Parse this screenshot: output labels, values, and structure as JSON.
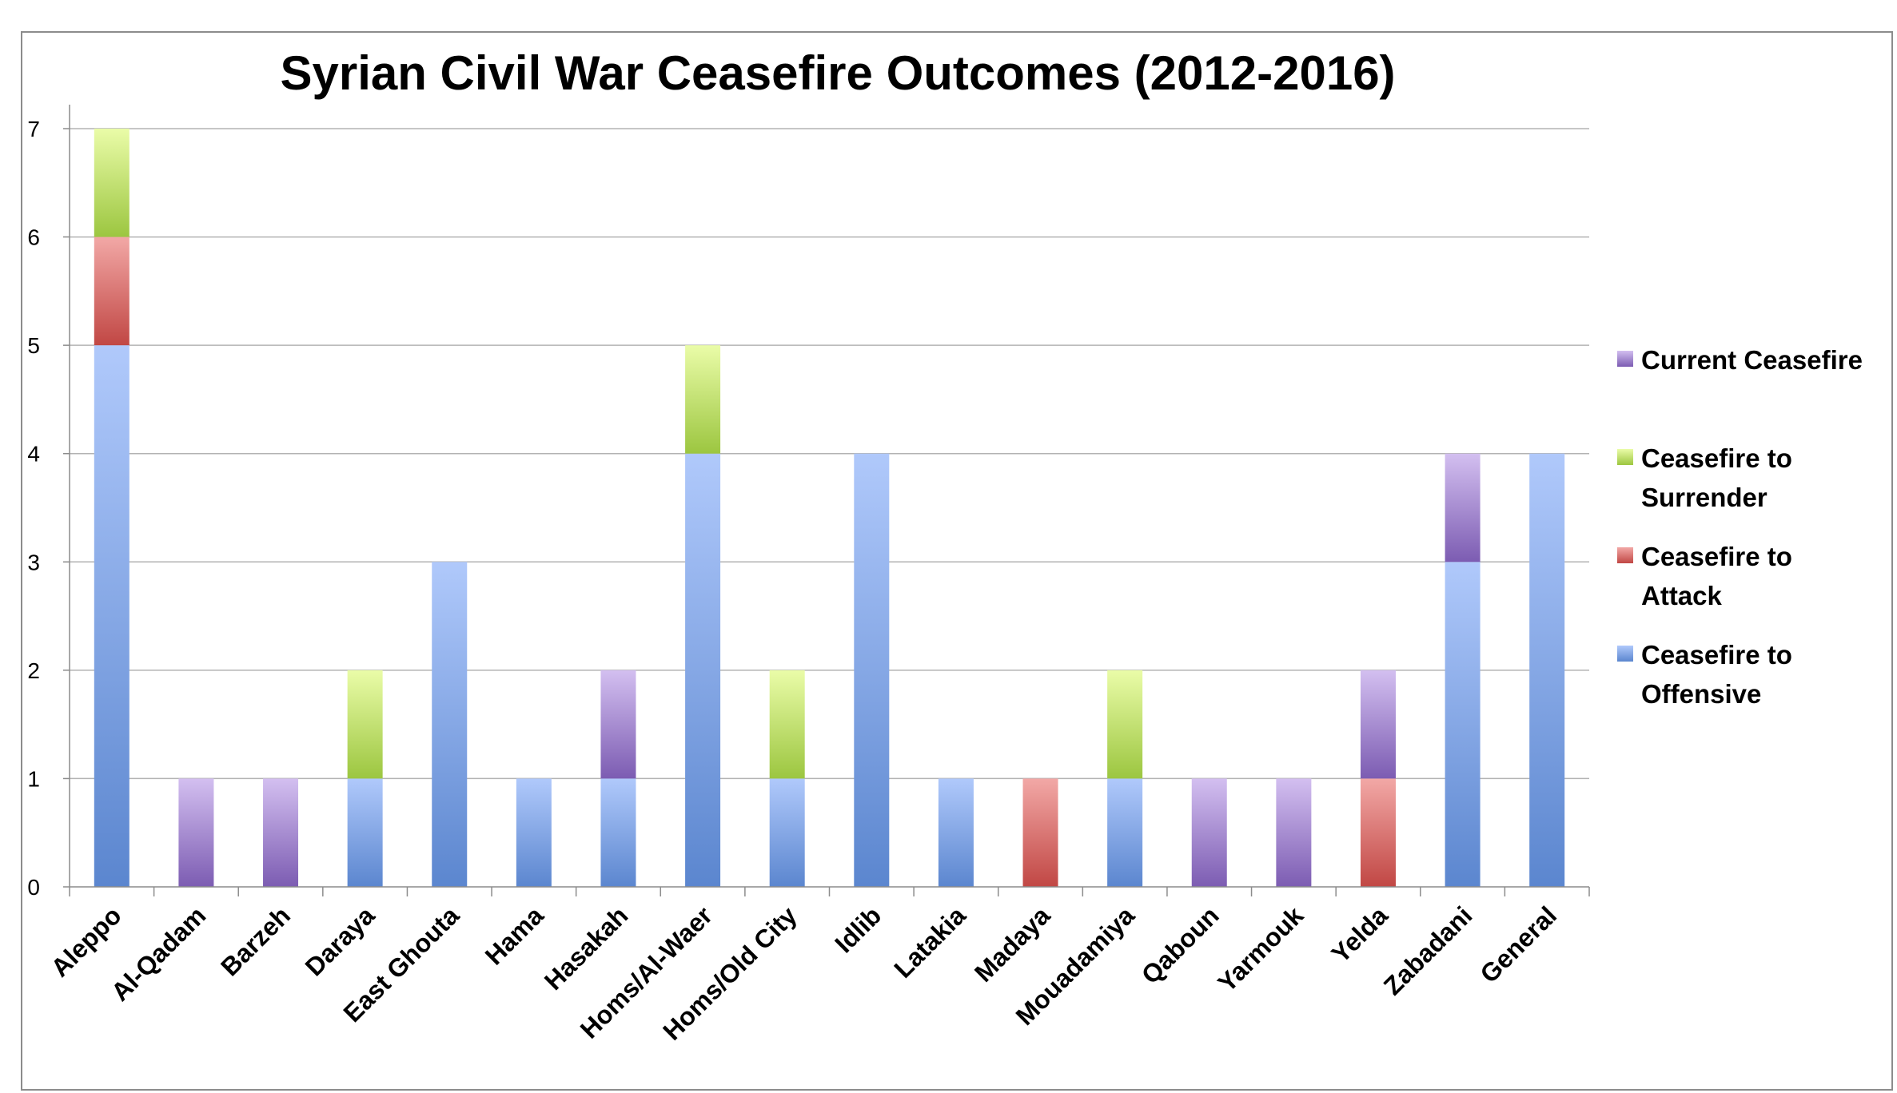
{
  "chart_data": {
    "type": "bar",
    "stacked": true,
    "title": "Syrian Civil War Ceasefire Outcomes (2012-2016)",
    "xlabel": "",
    "ylabel": "",
    "ylim": [
      0,
      7
    ],
    "yticks": [
      "0",
      "1",
      "2",
      "3",
      "4",
      "5",
      "6",
      "7"
    ],
    "grid": true,
    "legend_position": "right",
    "categories": [
      "Aleppo",
      "Al-Qadam",
      "Barzeh",
      "Daraya",
      "East Ghouta",
      "Hama",
      "Hasakah",
      "Homs/Al-Waer",
      "Homs/Old City",
      "Idlib",
      "Latakia",
      "Madaya",
      "Mouadamiya",
      "Qaboun",
      "Yarmouk",
      "Yelda",
      "Zabadani",
      "General"
    ],
    "series": [
      {
        "name": "Ceasefire to Offensive",
        "color": "#5b86cf",
        "light": "#b0c9fb",
        "values": [
          5,
          0,
          0,
          1,
          3,
          1,
          1,
          4,
          1,
          4,
          1,
          0,
          1,
          0,
          0,
          0,
          3,
          4
        ]
      },
      {
        "name": "Ceasefire to Attack",
        "color": "#c14744",
        "light": "#f2a8a6",
        "values": [
          1,
          0,
          0,
          0,
          0,
          0,
          0,
          0,
          0,
          0,
          0,
          1,
          0,
          0,
          0,
          1,
          0,
          0
        ]
      },
      {
        "name": "Ceasefire to Surrender",
        "color": "#9cc640",
        "light": "#eafca8",
        "values": [
          1,
          0,
          0,
          1,
          0,
          0,
          0,
          1,
          1,
          0,
          0,
          0,
          1,
          0,
          0,
          0,
          0,
          0
        ]
      },
      {
        "name": "Current Ceasefire",
        "color": "#7c5cb2",
        "light": "#d3bff0",
        "values": [
          0,
          1,
          1,
          0,
          0,
          0,
          1,
          0,
          0,
          0,
          0,
          0,
          0,
          1,
          1,
          1,
          1,
          0
        ]
      }
    ],
    "legend_order": [
      "Current Ceasefire",
      "Ceasefire to Surrender",
      "Ceasefire to Attack",
      "Ceasefire to Offensive"
    ],
    "legend_lines": {
      "Current Ceasefire": [
        "Current Ceasefire"
      ],
      "Ceasefire to Surrender": [
        "Ceasefire to",
        "Surrender"
      ],
      "Ceasefire to Attack": [
        "Ceasefire to",
        "Attack"
      ],
      "Ceasefire to Offensive": [
        "Ceasefire to",
        "Offensive"
      ]
    }
  }
}
